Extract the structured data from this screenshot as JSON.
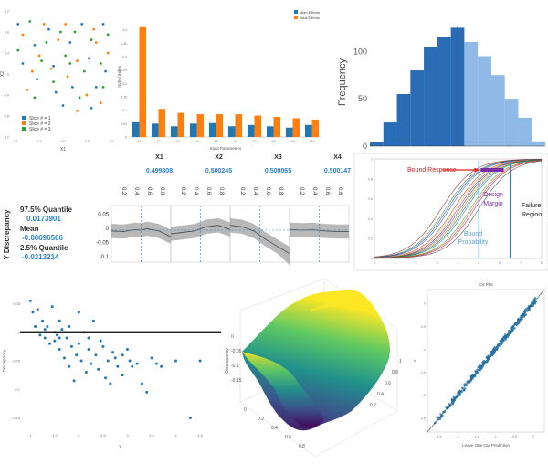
{
  "colors": {
    "blue": "#1f77b4",
    "orange": "#ff7f0e",
    "green": "#2ca02c",
    "hist_dark": "#2b6cb7",
    "hist_light": "#8fb9e6",
    "quant_blue": "#2a7fd3",
    "bound_response": "#e02020",
    "design_margin": "#7a2ba6",
    "bound_prob": "#5aa0d8",
    "failure_line": "#2a7fd3"
  },
  "chart_data": [
    {
      "type": "scatter",
      "id": "slices",
      "xlabel": "X1",
      "ylabel": "X2",
      "x_ticks": [
        "-1.0",
        "-0.5",
        "0.0",
        "0.5",
        "1.0"
      ],
      "y_ticks": [
        "-1.2",
        "-0.8",
        "-0.4",
        "0",
        "0.4",
        "0.8",
        "1.2"
      ],
      "xlim": [
        -1.1,
        1.1
      ],
      "ylim": [
        -1.2,
        1.2
      ],
      "series": [
        {
          "name": "Slice # = 1",
          "color": "#1f77b4",
          "points": [
            [
              -0.95,
              0.95
            ],
            [
              -0.6,
              0.55
            ],
            [
              -0.2,
              0.15
            ],
            [
              0.2,
              -0.25
            ],
            [
              0.6,
              -0.65
            ],
            [
              -0.85,
              0.2
            ],
            [
              -0.3,
              0.85
            ],
            [
              0.15,
              0.6
            ],
            [
              0.55,
              0.3
            ],
            [
              0.85,
              0.95
            ],
            [
              -0.55,
              -0.1
            ],
            [
              0.0,
              -0.6
            ],
            [
              0.4,
              0.95
            ],
            [
              0.9,
              0.05
            ],
            [
              -0.15,
              -0.35
            ],
            [
              0.7,
              -0.25
            ]
          ]
        },
        {
          "name": "Slice # = 2",
          "color": "#ff7f0e",
          "points": [
            [
              -0.85,
              0.75
            ],
            [
              -0.5,
              0.35
            ],
            [
              -0.1,
              0.65
            ],
            [
              0.3,
              0.25
            ],
            [
              0.7,
              0.6
            ],
            [
              -0.75,
              -0.3
            ],
            [
              -0.25,
              0.1
            ],
            [
              0.1,
              -0.05
            ],
            [
              0.5,
              -0.4
            ],
            [
              0.95,
              0.4
            ],
            [
              -0.4,
              0.95
            ],
            [
              0.05,
              0.95
            ],
            [
              0.65,
              0.85
            ],
            [
              -0.65,
              0.05
            ],
            [
              0.3,
              -0.7
            ],
            [
              0.8,
              -0.55
            ]
          ]
        },
        {
          "name": "Slice # = 3",
          "color": "#2ca02c",
          "points": [
            [
              -0.7,
              1.0
            ],
            [
              -0.35,
              0.6
            ],
            [
              0.05,
              0.35
            ],
            [
              0.45,
              0.05
            ],
            [
              0.8,
              0.2
            ],
            [
              -0.95,
              0.45
            ],
            [
              -0.45,
              0.25
            ],
            [
              0.25,
              0.8
            ],
            [
              0.6,
              0.65
            ],
            [
              -0.2,
              -0.15
            ],
            [
              0.35,
              -0.45
            ],
            [
              0.85,
              -0.25
            ],
            [
              -0.6,
              -0.45
            ],
            [
              -0.05,
              0.8
            ],
            [
              0.15,
              0.2
            ],
            [
              0.95,
              0.75
            ]
          ]
        }
      ]
    },
    {
      "type": "bar",
      "id": "sobol",
      "categories": [
        "X1",
        "X2",
        "X3",
        "X4",
        "X5",
        "X6",
        "X7",
        "X8",
        "X9",
        "X10"
      ],
      "xlabel": "Input Parameters",
      "ylabel": "Sobol Index",
      "ylim": [
        0,
        0.45
      ],
      "y_ticks": [
        "0",
        "0.05",
        "0.1",
        "0.15",
        "0.2",
        "0.25",
        "0.3",
        "0.35",
        "0.4"
      ],
      "series": [
        {
          "name": "Main Effects",
          "color": "#1f77b4",
          "values": [
            0.055,
            0.05,
            0.04,
            0.05,
            0.052,
            0.04,
            0.045,
            0.04,
            0.035,
            0.045
          ]
        },
        {
          "name": "Total Effects",
          "color": "#ff7f0e",
          "values": [
            0.41,
            0.105,
            0.09,
            0.085,
            0.085,
            0.085,
            0.08,
            0.075,
            0.07,
            0.065
          ]
        }
      ]
    },
    {
      "type": "bar",
      "id": "histogram",
      "ylabel": "Frequency",
      "y_ticks": [
        "0",
        "50",
        "100"
      ],
      "ylim": [
        0,
        135
      ],
      "split_index": 7,
      "values": [
        4,
        25,
        55,
        80,
        105,
        115,
        125,
        110,
        95,
        75,
        50,
        30,
        5
      ]
    },
    {
      "type": "line",
      "id": "prediction_profiler",
      "headers": [
        "X1",
        "X2",
        "X3",
        "X4"
      ],
      "values": [
        "0.499808",
        "0.500245",
        "0.500065",
        "0.500147"
      ],
      "y_ticks": [
        "0.05",
        "0",
        "-0.05",
        "-0.1"
      ],
      "ylim": [
        -0.12,
        0.08
      ],
      "x_ticks": [
        "0.2",
        "0.4",
        "0.6",
        "0.8"
      ],
      "ylabel": "Y Discrepancy",
      "quantile_975_label": "97.5% Quantile",
      "quantile_975": "0.0173901",
      "mean_label": "Mean",
      "mean": "-0.00696566",
      "quantile_025_label": "2.5% Quantile",
      "quantile_025": "-0.0313214",
      "curves": [
        [
          [
            0,
            -0.01
          ],
          [
            0.2,
            -0.012
          ],
          [
            0.4,
            -0.005
          ],
          [
            0.5,
            -0.007
          ],
          [
            0.6,
            -0.002
          ],
          [
            0.8,
            -0.01
          ],
          [
            1,
            -0.03
          ]
        ],
        [
          [
            0,
            -0.02
          ],
          [
            0.2,
            -0.015
          ],
          [
            0.4,
            -0.01
          ],
          [
            0.6,
            0.005
          ],
          [
            0.8,
            0.01
          ],
          [
            1,
            -0.005
          ]
        ],
        [
          [
            0,
            0.01
          ],
          [
            0.2,
            0.005
          ],
          [
            0.4,
            -0.01
          ],
          [
            0.6,
            -0.04
          ],
          [
            0.8,
            -0.065
          ],
          [
            1,
            -0.09
          ]
        ],
        [
          [
            0,
            -0.005
          ],
          [
            0.2,
            -0.007
          ],
          [
            0.4,
            -0.006
          ],
          [
            0.6,
            -0.01
          ],
          [
            0.8,
            -0.012
          ],
          [
            1,
            -0.012
          ]
        ]
      ]
    },
    {
      "type": "line",
      "id": "reliability",
      "annotations": [
        "Bound Response",
        "Design Margin",
        "Bound Probability",
        "Failure Region"
      ],
      "annotation_lines": {
        "design_margin": [
          "Design",
          "Margin"
        ],
        "bound_prob": [
          "Bound",
          "Probability"
        ],
        "failure": [
          "Failure",
          "Region"
        ]
      },
      "x_ticks": [
        "0",
        "1",
        "2",
        "3",
        "4",
        "5",
        "6",
        "7",
        "8"
      ],
      "y_ticks": [
        "0",
        "0.2",
        "0.4",
        "0.6",
        "0.8",
        "1"
      ],
      "curve_centers": [
        3.2,
        3.4,
        3.6,
        3.8,
        4.0,
        4.2,
        4.4,
        4.6,
        4.8,
        5.0,
        3.5,
        3.9,
        4.3,
        4.7,
        4.1
      ],
      "bound_prob_x": 5.0,
      "design_margin_x": 6.1,
      "failure_x": 6.5
    },
    {
      "type": "scatter",
      "id": "discrepancy_scatter",
      "xlabel": "Y",
      "ylabel": "Discrepancy",
      "x_ticks": [
        "1",
        "1.5",
        "2",
        "2.5",
        "3",
        "3.5",
        "4",
        "4.5"
      ],
      "y_ticks": [
        "0.05",
        "0",
        "-0.05",
        "-0.1",
        "-0.15"
      ],
      "xlim": [
        0.9,
        4.8
      ],
      "ylim": [
        -0.17,
        0.07
      ],
      "hline": 0,
      "points": [
        [
          1.0,
          0.055
        ],
        [
          1.05,
          0.035
        ],
        [
          1.1,
          0.01
        ],
        [
          1.15,
          0.04
        ],
        [
          1.2,
          -0.005
        ],
        [
          1.25,
          0.02
        ],
        [
          1.3,
          -0.01
        ],
        [
          1.35,
          0.01
        ],
        [
          1.4,
          -0.02
        ],
        [
          1.45,
          0.045
        ],
        [
          1.5,
          0.0
        ],
        [
          1.5,
          -0.015
        ],
        [
          1.55,
          -0.005
        ],
        [
          1.6,
          0.02
        ],
        [
          1.6,
          -0.03
        ],
        [
          1.65,
          0.005
        ],
        [
          1.7,
          -0.045
        ],
        [
          1.75,
          -0.01
        ],
        [
          1.8,
          0.01
        ],
        [
          1.8,
          -0.06
        ],
        [
          1.85,
          -0.025
        ],
        [
          1.9,
          -0.085
        ],
        [
          1.95,
          -0.04
        ],
        [
          2.0,
          -0.02
        ],
        [
          2.0,
          0.035
        ],
        [
          2.05,
          -0.05
        ],
        [
          2.1,
          0.0
        ],
        [
          2.15,
          -0.07
        ],
        [
          2.2,
          -0.03
        ],
        [
          2.25,
          -0.055
        ],
        [
          2.3,
          0.02
        ],
        [
          2.35,
          -0.04
        ],
        [
          2.4,
          -0.065
        ],
        [
          2.45,
          -0.015
        ],
        [
          2.5,
          -0.025
        ],
        [
          2.55,
          -0.08
        ],
        [
          2.6,
          -0.05
        ],
        [
          2.7,
          -0.035
        ],
        [
          2.75,
          -0.045
        ],
        [
          2.8,
          -0.06
        ],
        [
          2.9,
          -0.04
        ],
        [
          3.0,
          -0.03
        ],
        [
          3.05,
          -0.05
        ],
        [
          3.1,
          -0.06
        ],
        [
          3.2,
          -0.055
        ],
        [
          3.3,
          -0.09
        ],
        [
          3.4,
          -0.105
        ],
        [
          3.5,
          -0.045
        ],
        [
          3.6,
          -0.055
        ],
        [
          3.7,
          -0.06
        ],
        [
          4.0,
          -0.05
        ],
        [
          4.3,
          -0.15
        ],
        [
          4.5,
          -0.05
        ],
        [
          1.6,
          -0.01
        ],
        [
          2.2,
          -0.01
        ],
        [
          2.9,
          -0.075
        ],
        [
          1.3,
          0.005
        ],
        [
          2.65,
          -0.09
        ]
      ]
    },
    {
      "type": "heatmap",
      "id": "surface",
      "zlabel": "Discrepancy",
      "axis_ticks_left": [
        "0",
        "0.2",
        "0.4",
        "0.6",
        "0.8"
      ],
      "axis_ticks_right": [
        "0.2",
        "0.4",
        "0.6",
        "0.8",
        "1"
      ],
      "z_ticks": [
        "0",
        "-0.05",
        "-0.1",
        "-0.15"
      ],
      "colormap": [
        "#440154",
        "#3b528b",
        "#21918c",
        "#5ec962",
        "#fde725"
      ]
    },
    {
      "type": "scatter",
      "id": "cv_plot",
      "title": "CV Plot",
      "xlabel": "Leave One Out Prediction",
      "ylabel": "Y",
      "x_ticks": [
        "-2.5",
        "-2",
        "-1.5",
        "-1",
        "-0.5",
        "0"
      ],
      "y_ticks": [
        "0",
        "-0.5",
        "-1",
        "-1.5",
        "-2",
        "-2.5"
      ],
      "xlim": [
        -2.8,
        0.3
      ],
      "ylim": [
        -2.8,
        0.3
      ],
      "n_points": 320
    }
  ]
}
